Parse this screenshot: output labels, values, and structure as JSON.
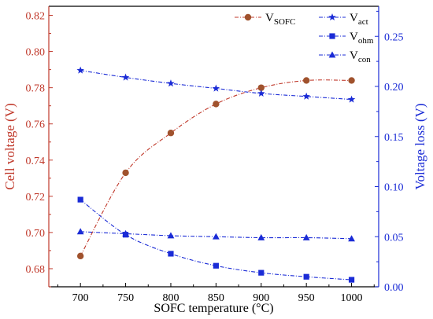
{
  "chart_data": {
    "type": "line",
    "x": [
      700,
      750,
      800,
      850,
      900,
      950,
      1000
    ],
    "xlabel": "SOFC temperature (°C)",
    "xlim": [
      665,
      1030
    ],
    "xticks": [
      700,
      750,
      800,
      850,
      900,
      950,
      1000
    ],
    "ylabel_left": "Cell voltage (V)",
    "ylim_left": [
      0.67,
      0.825
    ],
    "yticks_left": [
      0.68,
      0.7,
      0.72,
      0.74,
      0.76,
      0.78,
      0.8,
      0.82
    ],
    "ylabel_right": "Voltage loss (V)",
    "ylim_right": [
      0.0,
      0.28
    ],
    "yticks_right": [
      0.0,
      0.05,
      0.1,
      0.15,
      0.2,
      0.25
    ],
    "grid": false,
    "legend_position": "top-right",
    "series": [
      {
        "name": "V",
        "subscript": "SOFC",
        "axis": "left",
        "marker": "circle",
        "color": "#c0392b",
        "marker_color": "#a0522d",
        "values": [
          0.687,
          0.733,
          0.755,
          0.771,
          0.78,
          0.784,
          0.784
        ]
      },
      {
        "name": "V",
        "subscript": "act",
        "axis": "right",
        "marker": "star",
        "color": "#1a2bd6",
        "values": [
          0.216,
          0.209,
          0.203,
          0.198,
          0.193,
          0.19,
          0.187
        ]
      },
      {
        "name": "V",
        "subscript": "ohm",
        "axis": "right",
        "marker": "square",
        "color": "#1a2bd6",
        "values": [
          0.087,
          0.052,
          0.033,
          0.021,
          0.014,
          0.01,
          0.007
        ]
      },
      {
        "name": "V",
        "subscript": "con",
        "axis": "right",
        "marker": "triangle",
        "color": "#1a2bd6",
        "values": [
          0.055,
          0.053,
          0.051,
          0.05,
          0.049,
          0.049,
          0.048
        ]
      }
    ]
  }
}
